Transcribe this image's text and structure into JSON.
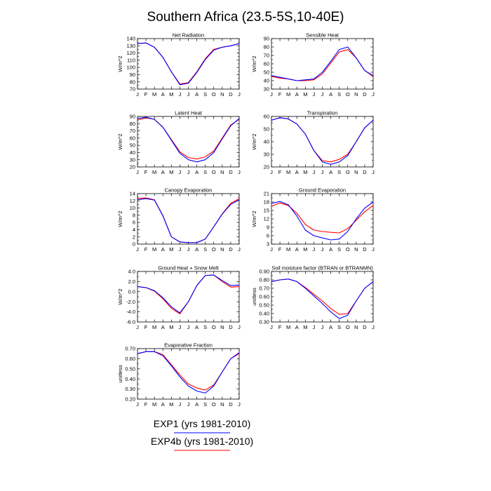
{
  "title": "Southern Africa (23.5-5S,10-40E)",
  "months": [
    "J",
    "F",
    "M",
    "A",
    "M",
    "J",
    "J",
    "A",
    "S",
    "O",
    "N",
    "D",
    "J"
  ],
  "legend": [
    {
      "label": "EXP1 (yrs 1981-2010)",
      "color": "#0000ff"
    },
    {
      "label": "EXP4b (yrs 1981-2010)",
      "color": "#ff0000"
    }
  ],
  "colors": {
    "exp1": "#0000ff",
    "exp4b": "#ff0000"
  },
  "chart_data": [
    {
      "type": "line",
      "title": "Net Radiation",
      "ylabel": "W/m^2",
      "ylim": [
        70,
        140
      ],
      "yticks": [
        "70",
        "80",
        "90",
        "100",
        "110",
        "120",
        "130",
        "140"
      ],
      "x": [
        "J",
        "F",
        "M",
        "A",
        "M",
        "J",
        "J",
        "A",
        "S",
        "O",
        "N",
        "D",
        "J"
      ],
      "series": [
        {
          "name": "EXP1 (yrs 1981-2010)",
          "values": [
            133,
            134,
            128,
            114,
            94,
            76,
            78,
            93,
            111,
            124,
            128,
            130,
            133
          ]
        },
        {
          "name": "EXP4b (yrs 1981-2010)",
          "values": [
            133,
            134,
            128,
            114,
            94,
            77,
            79,
            94,
            112,
            125,
            128,
            130,
            133
          ]
        }
      ]
    },
    {
      "type": "line",
      "title": "Sensible Heat",
      "ylabel": "W/m^2",
      "ylim": [
        30,
        90
      ],
      "yticks": [
        "30",
        "40",
        "50",
        "60",
        "70",
        "80",
        "90"
      ],
      "x": [
        "J",
        "F",
        "M",
        "A",
        "M",
        "J",
        "J",
        "A",
        "S",
        "O",
        "N",
        "D",
        "J"
      ],
      "series": [
        {
          "name": "EXP1 (yrs 1981-2010)",
          "values": [
            46,
            44,
            42,
            40,
            41,
            42,
            50,
            63,
            77,
            80,
            67,
            52,
            46
          ]
        },
        {
          "name": "EXP4b (yrs 1981-2010)",
          "values": [
            45,
            43,
            42,
            40,
            40,
            41,
            48,
            61,
            74,
            77,
            67,
            52,
            45
          ]
        }
      ]
    },
    {
      "type": "line",
      "title": "Latent Heat",
      "ylabel": "W/m^2",
      "ylim": [
        20,
        90
      ],
      "yticks": [
        "20",
        "30",
        "40",
        "50",
        "60",
        "70",
        "80",
        "90"
      ],
      "x": [
        "J",
        "F",
        "M",
        "A",
        "M",
        "J",
        "J",
        "A",
        "S",
        "O",
        "N",
        "D",
        "J"
      ],
      "series": [
        {
          "name": "EXP1 (yrs 1981-2010)",
          "values": [
            87,
            89,
            86,
            75,
            57,
            39,
            30,
            27,
            30,
            40,
            59,
            77,
            87
          ]
        },
        {
          "name": "EXP4b (yrs 1981-2010)",
          "values": [
            85,
            88,
            86,
            75,
            58,
            41,
            33,
            31,
            34,
            42,
            60,
            78,
            86
          ]
        }
      ]
    },
    {
      "type": "line",
      "title": "Transpiration",
      "ylabel": "W/m^2",
      "ylim": [
        20,
        60
      ],
      "yticks": [
        "20",
        "30",
        "40",
        "50",
        "60"
      ],
      "x": [
        "J",
        "F",
        "M",
        "A",
        "M",
        "J",
        "J",
        "A",
        "S",
        "O",
        "N",
        "D",
        "J"
      ],
      "series": [
        {
          "name": "EXP1 (yrs 1981-2010)",
          "values": [
            57,
            59,
            58,
            54,
            46,
            33,
            24,
            22,
            24,
            29,
            40,
            51,
            57
          ]
        },
        {
          "name": "EXP4b (yrs 1981-2010)",
          "values": [
            57,
            59,
            58,
            54,
            46,
            33,
            25,
            24,
            26,
            30,
            40,
            51,
            57
          ]
        }
      ]
    },
    {
      "type": "line",
      "title": "Canopy Evaporation",
      "ylabel": "W/m^2",
      "ylim": [
        0,
        14
      ],
      "yticks": [
        "0",
        "2",
        "4",
        "6",
        "8",
        "10",
        "12",
        "14"
      ],
      "x": [
        "J",
        "F",
        "M",
        "A",
        "M",
        "J",
        "J",
        "A",
        "S",
        "O",
        "N",
        "D",
        "J"
      ],
      "series": [
        {
          "name": "EXP1 (yrs 1981-2010)",
          "values": [
            12.3,
            12.6,
            12.2,
            7.8,
            2.0,
            0.6,
            0.4,
            0.4,
            1.4,
            4.8,
            8.3,
            11.0,
            12.3
          ]
        },
        {
          "name": "EXP4b (yrs 1981-2010)",
          "values": [
            12.6,
            12.8,
            12.3,
            7.9,
            2.0,
            0.6,
            0.4,
            0.4,
            1.4,
            4.8,
            8.4,
            11.3,
            12.6
          ]
        }
      ]
    },
    {
      "type": "line",
      "title": "Ground Evaporation",
      "ylabel": "W/m^2",
      "ylim": [
        3,
        21
      ],
      "yticks": [
        "3",
        "6",
        "9",
        "12",
        "15",
        "18",
        "21"
      ],
      "x": [
        "J",
        "F",
        "M",
        "A",
        "M",
        "J",
        "J",
        "A",
        "S",
        "O",
        "N",
        "D",
        "J"
      ],
      "series": [
        {
          "name": "EXP1 (yrs 1981-2010)",
          "values": [
            17.5,
            18.2,
            17.0,
            13.0,
            8.0,
            6.0,
            5.2,
            4.5,
            4.8,
            7.5,
            12.0,
            15.8,
            18.0
          ]
        },
        {
          "name": "EXP4b (yrs 1981-2010)",
          "values": [
            16.5,
            17.7,
            16.7,
            14.0,
            10.0,
            8.0,
            7.5,
            7.2,
            7.0,
            8.5,
            11.5,
            14.5,
            16.8
          ]
        }
      ]
    },
    {
      "type": "line",
      "title": "Ground Heat + Snow Melt",
      "ylabel": "W/m^2",
      "ylim": [
        -6.0,
        4.0
      ],
      "yticks": [
        "-6.0",
        "-4.0",
        "-2.0",
        "0.0",
        "2.0",
        "4.0"
      ],
      "x": [
        "J",
        "F",
        "M",
        "A",
        "M",
        "J",
        "J",
        "A",
        "S",
        "O",
        "N",
        "D",
        "J"
      ],
      "series": [
        {
          "name": "EXP1 (yrs 1981-2010)",
          "values": [
            1.0,
            0.8,
            0.2,
            -1.2,
            -3.0,
            -4.2,
            -2.0,
            1.2,
            3.2,
            3.3,
            2.2,
            1.2,
            1.3
          ]
        },
        {
          "name": "EXP4b (yrs 1981-2010)",
          "values": [
            1.0,
            0.8,
            0.1,
            -1.4,
            -3.3,
            -4.4,
            -2.0,
            1.2,
            3.2,
            3.3,
            2.0,
            0.9,
            1.0
          ]
        }
      ]
    },
    {
      "type": "line",
      "title": "Soil moisture factor (BTRAN or BTRANMN)",
      "ylabel": "unitless",
      "ylim": [
        0.3,
        0.9
      ],
      "yticks": [
        "0.30",
        "0.40",
        "0.50",
        "0.60",
        "0.70",
        "0.80",
        "0.90"
      ],
      "x": [
        "J",
        "F",
        "M",
        "A",
        "M",
        "J",
        "J",
        "A",
        "S",
        "O",
        "N",
        "D",
        "J"
      ],
      "series": [
        {
          "name": "EXP1 (yrs 1981-2010)",
          "values": [
            0.78,
            0.8,
            0.81,
            0.78,
            0.7,
            0.61,
            0.52,
            0.42,
            0.34,
            0.38,
            0.55,
            0.7,
            0.78
          ]
        },
        {
          "name": "EXP4b (yrs 1981-2010)",
          "values": [
            0.78,
            0.8,
            0.81,
            0.78,
            0.71,
            0.63,
            0.55,
            0.46,
            0.39,
            0.4,
            0.55,
            0.7,
            0.78
          ]
        }
      ]
    },
    {
      "type": "line",
      "title": "Evaporative Fraction",
      "ylabel": "unitless",
      "ylim": [
        0.2,
        0.7
      ],
      "yticks": [
        "0.20",
        "0.30",
        "0.40",
        "0.50",
        "0.60",
        "0.70"
      ],
      "x": [
        "J",
        "F",
        "M",
        "A",
        "M",
        "J",
        "J",
        "A",
        "S",
        "O",
        "N",
        "D",
        "J"
      ],
      "series": [
        {
          "name": "EXP1 (yrs 1981-2010)",
          "values": [
            0.65,
            0.67,
            0.67,
            0.63,
            0.53,
            0.42,
            0.33,
            0.28,
            0.26,
            0.33,
            0.47,
            0.6,
            0.66
          ]
        },
        {
          "name": "EXP4b (yrs 1981-2010)",
          "values": [
            0.65,
            0.67,
            0.67,
            0.64,
            0.54,
            0.44,
            0.35,
            0.31,
            0.29,
            0.34,
            0.47,
            0.6,
            0.65
          ]
        }
      ]
    }
  ]
}
